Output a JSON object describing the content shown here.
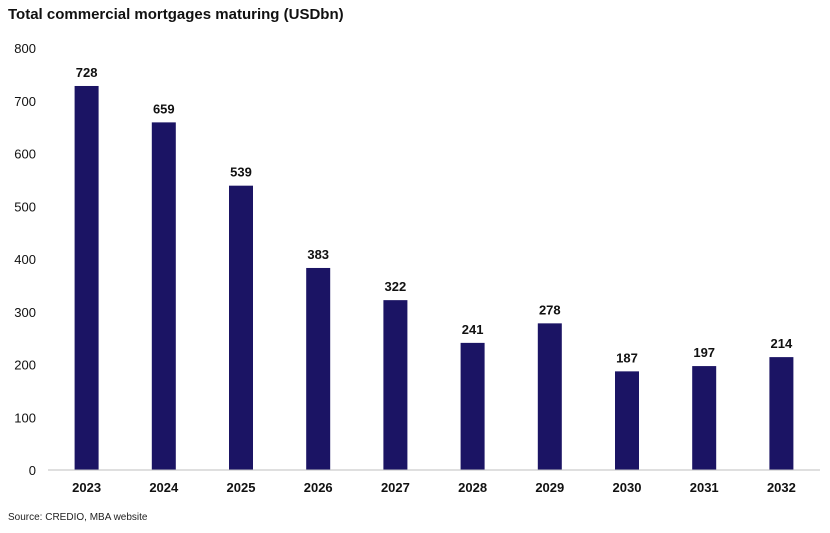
{
  "chart_data": {
    "type": "bar",
    "title": "Total commercial mortgages maturing (USDbn)",
    "categories": [
      "2023",
      "2024",
      "2025",
      "2026",
      "2027",
      "2028",
      "2029",
      "2030",
      "2031",
      "2032"
    ],
    "values": [
      728,
      659,
      539,
      383,
      322,
      241,
      278,
      187,
      197,
      214
    ],
    "data_labels": [
      "728",
      "659",
      "539",
      "383",
      "322",
      "241",
      "278",
      "187",
      "197",
      "214"
    ],
    "yticks": [
      "0",
      "100",
      "200",
      "300",
      "400",
      "500",
      "600",
      "700",
      "800"
    ],
    "ylim": [
      0,
      800
    ],
    "grid": false,
    "bar_color": "#1b1464",
    "source": "Source: CREDIO, MBA website"
  }
}
